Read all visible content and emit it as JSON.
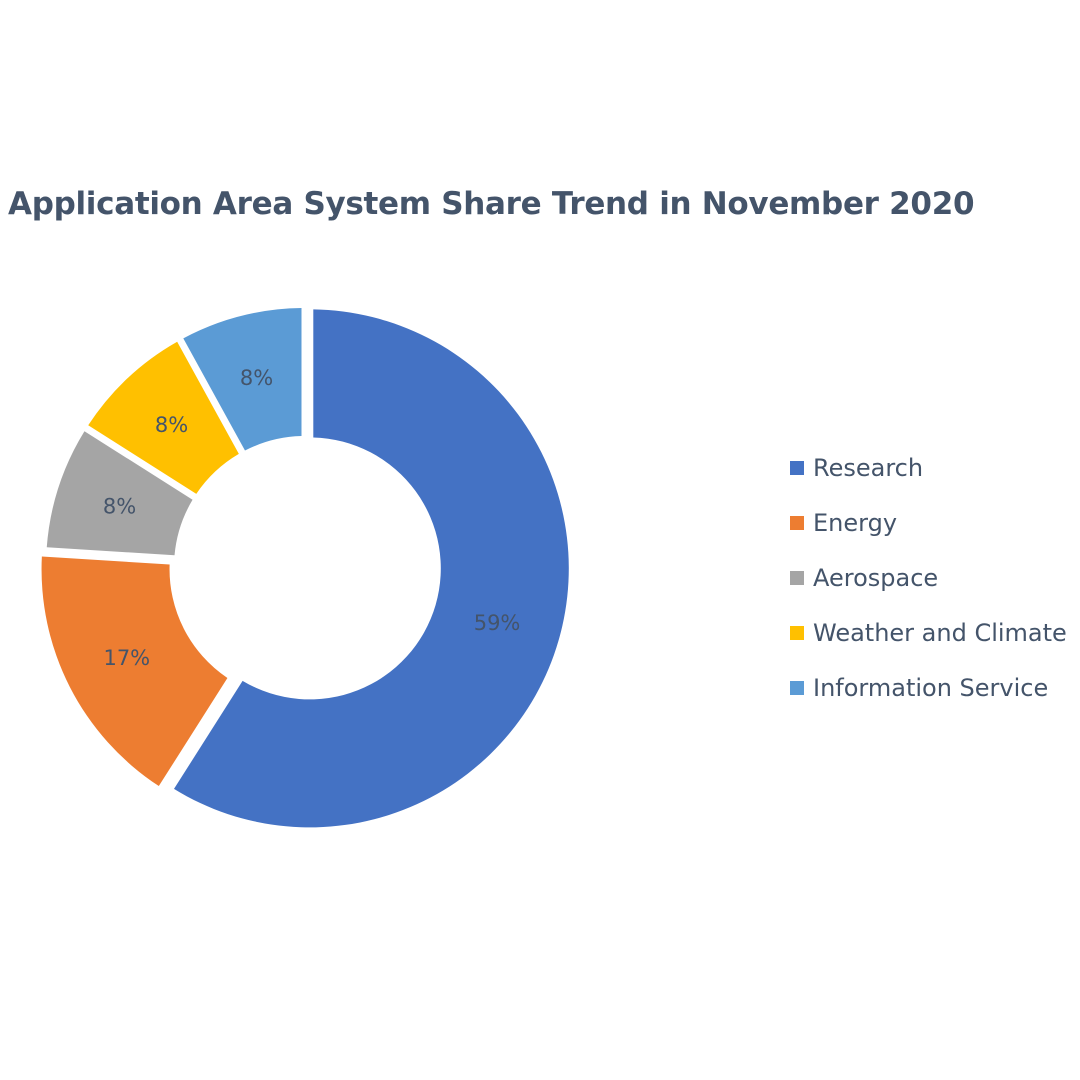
{
  "chart_data": {
    "type": "pie",
    "title": "Application Area System Share Trend in November 2020",
    "donut": true,
    "legend_position": "right",
    "categories": [
      "Research",
      "Energy",
      "Aerospace",
      "Weather and Climate",
      "Information Service"
    ],
    "values": [
      59,
      17,
      8,
      8,
      8
    ],
    "labels": [
      "59%",
      "17%",
      "8%",
      "8%",
      "8%"
    ],
    "colors": [
      "#4472c4",
      "#ed7d31",
      "#a5a5a5",
      "#ffc000",
      "#5b9bd5"
    ]
  }
}
